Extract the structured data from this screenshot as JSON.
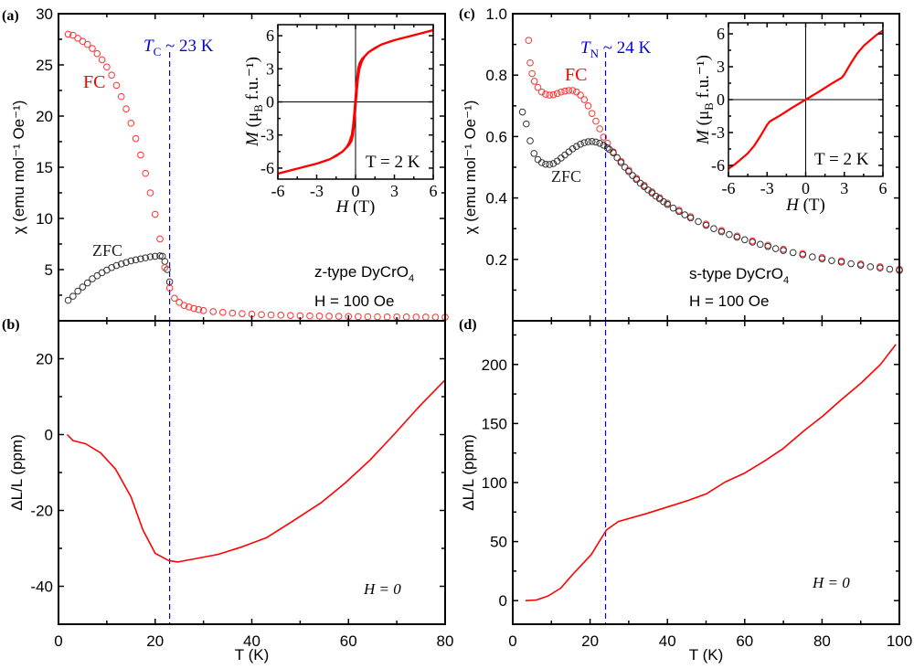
{
  "panel_labels": {
    "a": "(a)",
    "b": "(b)",
    "c": "(c)",
    "d": "(d)"
  },
  "colors": {
    "fc": "#ff3030",
    "zfc": "#333333",
    "line": "#ff0000",
    "marker_line": "#0000dd",
    "axis": "#000000"
  },
  "annotations": {
    "a_tc": {
      "var": "T",
      "sub": "C",
      "rest": " ~ 23 K"
    },
    "a_fc": "FC",
    "a_zfc": "ZFC",
    "a_sample": {
      "main": "z-type DyCrO",
      "sub": "4"
    },
    "a_field": "H = 100 Oe",
    "a_inset_temp": "T = 2 K",
    "b_field": "H = 0",
    "c_tn": {
      "var": "T",
      "sub": "N",
      "rest": " ~ 24 K"
    },
    "c_fc": "FC",
    "c_zfc": "ZFC",
    "c_sample": {
      "main": "s-type DyCrO",
      "sub": "4"
    },
    "c_field": "H = 100 Oe",
    "c_inset_temp": "T = 2 K",
    "d_field": "H = 0"
  },
  "chart_data": [
    {
      "panel": "a",
      "type": "scatter",
      "xlim": [
        0,
        80
      ],
      "ylim": [
        0,
        30
      ],
      "ylabel": "χ (emu mol⁻¹ Oe⁻¹)",
      "xlabel": "",
      "xticks": [
        0,
        20,
        40,
        60,
        80
      ],
      "yticks": [
        5,
        10,
        15,
        20,
        25,
        30
      ],
      "yticklabels": [
        "5",
        "10",
        "15",
        "20",
        "25",
        "30"
      ],
      "marker_T": 23,
      "series": [
        {
          "name": "ZFC",
          "color": "#333333",
          "x": [
            2,
            3,
            4,
            5,
            6,
            7,
            8,
            9,
            10,
            11,
            12,
            13,
            14,
            15,
            16,
            17,
            18,
            19,
            20,
            21,
            21.5,
            22,
            22.5,
            23
          ],
          "y": [
            2.0,
            2.4,
            2.9,
            3.3,
            3.7,
            4.1,
            4.4,
            4.7,
            4.95,
            5.2,
            5.4,
            5.55,
            5.7,
            5.85,
            5.95,
            6.05,
            6.15,
            6.25,
            6.3,
            6.35,
            6.3,
            5.8,
            5.0,
            3.8
          ]
        },
        {
          "name": "FC",
          "color": "#ff3030",
          "x": [
            2,
            3,
            4,
            5,
            6,
            7,
            8,
            9,
            10,
            11,
            12,
            13,
            14,
            15,
            16,
            17,
            18,
            19,
            20,
            21,
            22,
            23,
            24,
            25,
            26,
            27,
            28,
            29,
            30,
            32,
            34,
            36,
            38,
            40,
            42,
            44,
            46,
            48,
            50,
            52,
            54,
            56,
            58,
            60,
            62,
            64,
            66,
            68,
            70,
            72,
            74,
            76,
            78,
            80
          ],
          "y": [
            28.0,
            27.9,
            27.6,
            27.3,
            27.0,
            26.6,
            26.1,
            25.5,
            24.8,
            24.0,
            23.0,
            21.9,
            20.7,
            19.3,
            17.8,
            16.2,
            14.4,
            12.5,
            10.4,
            8.0,
            5.2,
            3.2,
            2.2,
            1.8,
            1.5,
            1.35,
            1.2,
            1.1,
            1.0,
            0.9,
            0.82,
            0.75,
            0.7,
            0.65,
            0.6,
            0.57,
            0.55,
            0.52,
            0.5,
            0.48,
            0.46,
            0.45,
            0.44,
            0.42,
            0.41,
            0.4,
            0.39,
            0.38,
            0.38,
            0.37,
            0.36,
            0.36,
            0.35,
            0.35
          ]
        }
      ]
    },
    {
      "panel": "b",
      "type": "line",
      "xlim": [
        0,
        80
      ],
      "ylim": [
        -50,
        30
      ],
      "ylabel": "ΔL/L (ppm)",
      "xlabel": "T (K)",
      "xticks": [
        0,
        20,
        40,
        60,
        80
      ],
      "yticks": [
        -40,
        -20,
        0,
        20
      ],
      "yticklabels": [
        "-40",
        "-20",
        "0",
        "20"
      ],
      "marker_T": 23,
      "series": [
        {
          "color": "#ff0000",
          "x": [
            1.8,
            3.0,
            5.6,
            8.7,
            11.8,
            15,
            17.5,
            20,
            22.8,
            24.7,
            28,
            33,
            38,
            43,
            48,
            54.3,
            59.3,
            64.4,
            69.4,
            74.5,
            80
          ],
          "y": [
            0,
            -1.6,
            -2.4,
            -4.8,
            -9.1,
            -16.4,
            -25.2,
            -31.3,
            -33.2,
            -33.6,
            -32.8,
            -31.6,
            -29.6,
            -27.2,
            -23.2,
            -18,
            -12.8,
            -6.8,
            0,
            7.2,
            14.4
          ]
        }
      ]
    },
    {
      "panel": "c",
      "type": "scatter",
      "xlim": [
        0,
        100
      ],
      "ylim": [
        0,
        1
      ],
      "ylabel": "χ (emu mol⁻¹ Oe⁻¹)",
      "xlabel": "",
      "xticks": [
        0,
        20,
        40,
        60,
        80,
        100
      ],
      "yticks": [
        0.2,
        0.4,
        0.6,
        0.8,
        1.0
      ],
      "yticklabels": [
        "0.2",
        "0.4",
        "0.6",
        "0.8",
        "1.0"
      ],
      "marker_T": 24,
      "series": [
        {
          "name": "FC",
          "color": "#ff3030",
          "x": [
            4.1,
            4.5,
            5,
            5.6,
            6.5,
            7.5,
            8.5,
            9.5,
            10.5,
            11.5,
            12.5,
            13.5,
            14.5,
            15.5,
            16.5,
            17.5,
            18.5,
            19.5,
            20.5,
            21.5,
            22.5,
            23.5,
            24.5,
            26,
            28,
            30,
            32,
            34,
            36,
            38,
            40,
            43,
            46,
            50,
            54,
            58,
            62,
            66,
            70,
            75,
            80,
            85,
            90,
            95,
            100
          ],
          "y": [
            0.913,
            0.84,
            0.805,
            0.78,
            0.76,
            0.745,
            0.738,
            0.735,
            0.736,
            0.74,
            0.745,
            0.748,
            0.75,
            0.75,
            0.745,
            0.735,
            0.72,
            0.7,
            0.675,
            0.65,
            0.625,
            0.598,
            0.578,
            0.55,
            0.519,
            0.49,
            0.464,
            0.441,
            0.42,
            0.401,
            0.383,
            0.36,
            0.339,
            0.315,
            0.294,
            0.276,
            0.26,
            0.246,
            0.233,
            0.219,
            0.206,
            0.195,
            0.185,
            0.176,
            0.168
          ]
        },
        {
          "name": "ZFC",
          "color": "#333333",
          "x": [
            2.5,
            3.5,
            4.5,
            5.5,
            6.5,
            7.5,
            8.5,
            9.5,
            10.5,
            11.5,
            12.5,
            13.5,
            14.5,
            15.5,
            16.5,
            17.5,
            18.5,
            19.5,
            20.5,
            21.5,
            22.5,
            23.5,
            24.5,
            25,
            26,
            27,
            28,
            29,
            30,
            31,
            32,
            33,
            34,
            35,
            36,
            37,
            38,
            39,
            40,
            41.5,
            43,
            44.5,
            46,
            48,
            50,
            52,
            54,
            56,
            58,
            60,
            62,
            64,
            66,
            68,
            70,
            72.5,
            75,
            77.5,
            80,
            82.5,
            85,
            87.5,
            90,
            92.5,
            95,
            97.5,
            100
          ],
          "y": [
            0.68,
            0.641,
            0.586,
            0.545,
            0.525,
            0.515,
            0.51,
            0.509,
            0.512,
            0.52,
            0.53,
            0.54,
            0.55,
            0.56,
            0.568,
            0.575,
            0.58,
            0.583,
            0.584,
            0.582,
            0.578,
            0.572,
            0.563,
            0.558,
            0.547,
            0.531,
            0.515,
            0.5,
            0.486,
            0.473,
            0.46,
            0.448,
            0.437,
            0.426,
            0.416,
            0.406,
            0.397,
            0.388,
            0.379,
            0.367,
            0.356,
            0.345,
            0.335,
            0.323,
            0.311,
            0.3,
            0.29,
            0.281,
            0.272,
            0.264,
            0.256,
            0.249,
            0.242,
            0.235,
            0.229,
            0.222,
            0.215,
            0.208,
            0.202,
            0.196,
            0.191,
            0.186,
            0.181,
            0.176,
            0.172,
            0.168,
            0.164
          ]
        }
      ]
    },
    {
      "panel": "d",
      "type": "line",
      "xlim": [
        0,
        100
      ],
      "ylim": [
        -20,
        237
      ],
      "ylabel": "ΔL/L (ppm)",
      "xlabel": "T (K)",
      "xticks": [
        0,
        20,
        40,
        60,
        80,
        100
      ],
      "yticks": [
        0,
        50,
        100,
        150,
        200
      ],
      "yticklabels": [
        "0",
        "50",
        "100",
        "150",
        "200"
      ],
      "marker_T": 24,
      "series": [
        {
          "color": "#ff0000",
          "x": [
            3.3,
            6.1,
            9.2,
            12.4,
            15.5,
            20.3,
            24.2,
            27.3,
            34.4,
            40.7,
            45.5,
            50.2,
            54.9,
            60,
            65.2,
            69.9,
            75.4,
            80.1,
            84.9,
            90,
            95.1,
            99.1
          ],
          "y": [
            0,
            0.5,
            4,
            10.6,
            22.2,
            39,
            59.7,
            67,
            73.5,
            80,
            85,
            90.6,
            100.4,
            108,
            118.4,
            128.7,
            144,
            156,
            170,
            184,
            200,
            217
          ]
        }
      ]
    },
    {
      "panel": "a-inset",
      "type": "line",
      "xlim": [
        -6,
        6
      ],
      "ylim": [
        -7,
        7
      ],
      "xlabel": {
        "var": "H",
        "rest": " (T)"
      },
      "ylabel": {
        "var": "M",
        "mid": " (μ",
        "sub": "B",
        "rest": " f.u.⁻¹)"
      },
      "xticks": [
        -6,
        -3,
        0,
        3,
        6
      ],
      "yticks": [
        -6,
        -3,
        0,
        3,
        6
      ],
      "xticklabels": [
        "-6",
        "-3",
        "0",
        "3",
        "6"
      ],
      "yticklabels": [
        "-6",
        "-3",
        "0",
        "3",
        "6"
      ],
      "series": [
        {
          "color": "#ff0000",
          "x": [
            6,
            5,
            4,
            3,
            2,
            1.5,
            1,
            0.7,
            0.5,
            0.3,
            0.2,
            0.1,
            0,
            -0.1,
            -0.2,
            -0.3,
            -0.5,
            -1,
            -2,
            -3,
            -4,
            -5,
            -6
          ],
          "y": [
            6.5,
            6.2,
            5.9,
            5.6,
            5.2,
            4.9,
            4.5,
            4.1,
            3.7,
            3.0,
            2.2,
            1.0,
            -0.5,
            -2.0,
            -3.0,
            -3.5,
            -3.9,
            -4.5,
            -5.2,
            -5.6,
            -5.9,
            -6.2,
            -6.5
          ]
        },
        {
          "color": "#ff0000",
          "x": [
            -6,
            -5,
            -4,
            -3,
            -2,
            -1.5,
            -1,
            -0.7,
            -0.5,
            -0.3,
            -0.2,
            -0.1,
            0,
            0.1,
            0.2,
            0.3,
            0.5,
            1,
            2,
            3,
            4,
            5,
            6
          ],
          "y": [
            -6.5,
            -6.2,
            -5.9,
            -5.6,
            -5.2,
            -4.9,
            -4.5,
            -4.1,
            -3.7,
            -3.0,
            -2.2,
            -1.0,
            0.5,
            2.0,
            3.0,
            3.5,
            3.9,
            4.5,
            5.2,
            5.6,
            5.9,
            6.2,
            6.5
          ]
        }
      ]
    },
    {
      "panel": "c-inset",
      "type": "line",
      "xlim": [
        -6,
        6
      ],
      "ylim": [
        -7,
        7
      ],
      "xlabel": {
        "var": "H",
        "rest": " (T)"
      },
      "ylabel": {
        "var": "M",
        "mid": " (μ",
        "sub": "B",
        "rest": " f.u.⁻¹)"
      },
      "xticks": [
        -6,
        -3,
        0,
        3,
        6
      ],
      "yticks": [
        -6,
        -3,
        0,
        3,
        6
      ],
      "xticklabels": [
        "-6",
        "-3",
        "0",
        "3",
        "6"
      ],
      "yticklabels": [
        "-6",
        "-3",
        "0",
        "3",
        "6"
      ],
      "series": [
        {
          "color": "#ff0000",
          "x": [
            -6,
            -5.5,
            -5,
            -4.5,
            -4,
            -3.5,
            -3.2,
            -3,
            -2.8,
            -2,
            -1,
            0,
            1,
            2,
            2.8,
            3,
            3.2,
            3.5,
            4,
            4.5,
            5,
            5.5,
            6
          ],
          "y": [
            -6.3,
            -5.9,
            -5.4,
            -4.9,
            -4.2,
            -3.3,
            -2.7,
            -2.3,
            -2.0,
            -1.45,
            -0.7,
            0,
            0.7,
            1.45,
            2.0,
            2.3,
            2.7,
            3.3,
            4.2,
            4.9,
            5.4,
            5.9,
            6.3
          ]
        }
      ]
    }
  ]
}
